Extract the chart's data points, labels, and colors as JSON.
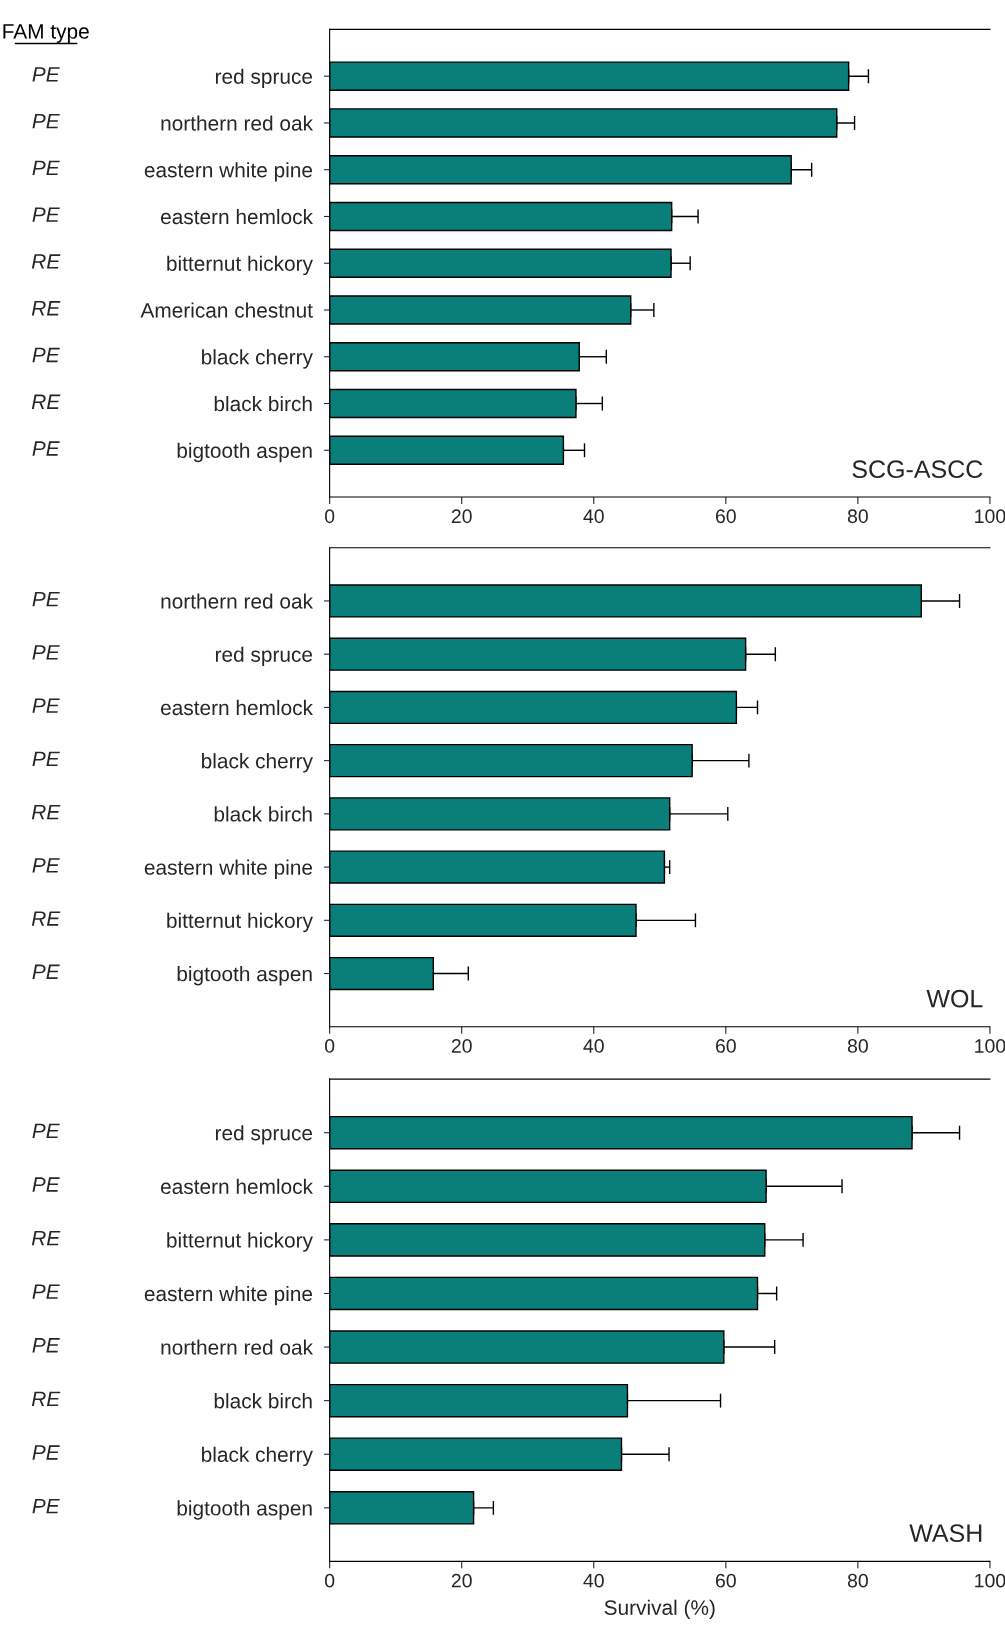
{
  "chart_data": [
    {
      "type": "bar",
      "orientation": "horizontal",
      "y2label": "FAM type",
      "annotations": [
        "SCG-ASCC"
      ],
      "categories": [
        "red spruce",
        "northern red oak",
        "eastern white pine",
        "eastern hemlock",
        "bitternut hickory",
        "American chestnut",
        "black cherry",
        "black birch",
        "bigtooth aspen"
      ],
      "y2_categories": [
        "PE",
        "PE",
        "PE",
        "PE",
        "RE",
        "RE",
        "PE",
        "RE",
        "PE"
      ],
      "series": [
        {
          "color": "#0a7f7a",
          "values": [
            78.6,
            76.8,
            69.9,
            51.8,
            51.7,
            45.6,
            37.8,
            37.3,
            35.4
          ],
          "errors": [
            [
              78.6,
              81.6
            ],
            [
              76.8,
              79.5
            ],
            [
              69.9,
              73.0
            ],
            [
              51.8,
              55.8
            ],
            [
              51.7,
              54.6
            ],
            [
              45.6,
              49.1
            ],
            [
              37.8,
              41.9
            ],
            [
              37.3,
              41.3
            ],
            [
              35.4,
              38.6
            ]
          ]
        }
      ],
      "xlim": [
        0,
        100
      ],
      "xticks": [
        0,
        20,
        40,
        60,
        80,
        100
      ]
    },
    {
      "type": "bar",
      "orientation": "horizontal",
      "annotations": [
        "WOL"
      ],
      "categories": [
        "northern red oak",
        "red spruce",
        "eastern hemlock",
        "black cherry",
        "black birch",
        "eastern white pine",
        "bitternut hickory",
        "bigtooth aspen"
      ],
      "y2_categories": [
        "PE",
        "PE",
        "PE",
        "PE",
        "RE",
        "PE",
        "RE",
        "PE"
      ],
      "series": [
        {
          "color": "#0a7f7a",
          "values": [
            89.6,
            63.0,
            61.6,
            54.9,
            51.5,
            50.7,
            46.4,
            15.7
          ],
          "errors": [
            [
              89.6,
              95.4
            ],
            [
              63.0,
              67.5
            ],
            [
              61.6,
              64.8
            ],
            [
              54.9,
              63.5
            ],
            [
              51.5,
              60.3
            ],
            [
              50.7,
              51.5
            ],
            [
              46.4,
              55.4
            ],
            [
              15.7,
              21.0
            ]
          ]
        }
      ],
      "xlim": [
        0,
        100
      ],
      "xticks": [
        0,
        20,
        40,
        60,
        80,
        100
      ]
    },
    {
      "type": "bar",
      "orientation": "horizontal",
      "annotations": [
        "WASH"
      ],
      "xlabel": "Survival (%)",
      "categories": [
        "red spruce",
        "eastern hemlock",
        "bitternut hickory",
        "eastern white pine",
        "northern red oak",
        "black birch",
        "black cherry",
        "bigtooth aspen"
      ],
      "y2_categories": [
        "PE",
        "PE",
        "RE",
        "PE",
        "PE",
        "RE",
        "PE",
        "PE"
      ],
      "series": [
        {
          "color": "#0a7f7a",
          "values": [
            88.2,
            66.1,
            65.9,
            64.8,
            59.7,
            45.1,
            44.2,
            21.8
          ],
          "errors": [
            [
              88.2,
              95.4
            ],
            [
              66.1,
              77.6
            ],
            [
              65.9,
              71.7
            ],
            [
              64.8,
              67.7
            ],
            [
              59.7,
              67.4
            ],
            [
              45.1,
              59.2
            ],
            [
              44.2,
              51.4
            ],
            [
              21.8,
              24.8
            ]
          ]
        }
      ],
      "xlim": [
        0,
        100
      ],
      "xticks": [
        0,
        20,
        40,
        60,
        80,
        100
      ]
    }
  ]
}
